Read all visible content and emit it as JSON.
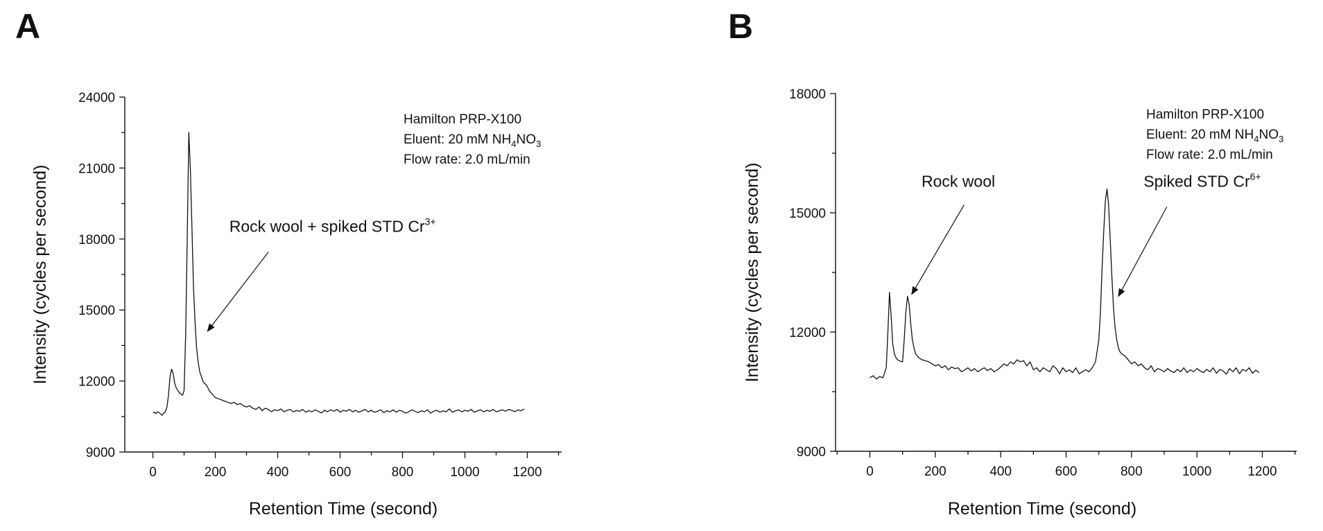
{
  "chart_data": [
    {
      "type": "line",
      "panel_label": "A",
      "xlabel": "Retention Time (second)",
      "ylabel": "Intensity (cycles per second)",
      "xlim": [
        -90,
        1310
      ],
      "ylim": [
        9000,
        24000
      ],
      "x_ticks": [
        0,
        200,
        400,
        600,
        800,
        1000,
        1200
      ],
      "y_ticks": [
        9000,
        12000,
        15000,
        18000,
        21000,
        24000
      ],
      "info_lines": [
        {
          "text": "Hamilton PRP-X100"
        },
        {
          "text": "Eluent: 20 mM NH",
          "sub1": "4",
          "mid": "NO",
          "sub2": "3"
        },
        {
          "text": "Flow rate: 2.0 mL/min"
        }
      ],
      "annotations": [
        {
          "text": "Rock wool + spiked STD Cr",
          "sup": "3+",
          "text_x": 245,
          "text_y": 18300,
          "arrow_from": [
            370,
            17450
          ],
          "arrow_to": [
            175,
            14100
          ]
        }
      ],
      "series": [
        {
          "x": [
            0,
            5,
            10,
            15,
            20,
            25,
            30,
            35,
            40,
            45,
            50,
            55,
            60,
            65,
            70,
            75,
            80,
            85,
            90,
            95,
            100,
            105,
            110,
            115,
            120,
            125,
            130,
            135,
            140,
            145,
            150,
            155,
            160,
            165,
            170,
            175,
            180,
            190,
            200,
            210,
            220,
            230,
            240,
            250,
            260,
            270,
            280,
            290,
            300,
            310,
            320,
            330,
            340,
            350,
            360,
            370,
            380,
            390,
            400,
            410,
            420,
            430,
            440,
            450,
            460,
            470,
            480,
            490,
            500,
            510,
            520,
            530,
            540,
            550,
            560,
            570,
            580,
            590,
            600,
            610,
            620,
            630,
            640,
            650,
            660,
            670,
            680,
            690,
            700,
            710,
            720,
            730,
            740,
            750,
            760,
            770,
            780,
            790,
            800,
            810,
            820,
            830,
            840,
            850,
            860,
            870,
            880,
            890,
            900,
            910,
            920,
            930,
            940,
            950,
            960,
            970,
            980,
            990,
            1000,
            1010,
            1020,
            1030,
            1040,
            1050,
            1060,
            1070,
            1080,
            1090,
            1100,
            1110,
            1120,
            1130,
            1140,
            1150,
            1160,
            1170,
            1180,
            1190
          ],
          "y": [
            10650,
            10680,
            10620,
            10700,
            10660,
            10600,
            10550,
            10650,
            10700,
            10900,
            11400,
            12200,
            12500,
            12300,
            11900,
            11700,
            11600,
            11500,
            11450,
            11400,
            11600,
            14000,
            18000,
            22500,
            21000,
            18500,
            16000,
            14500,
            13400,
            12800,
            12400,
            12200,
            12000,
            11900,
            11850,
            11750,
            11600,
            11450,
            11300,
            11250,
            11200,
            11150,
            11100,
            11050,
            11100,
            11000,
            11050,
            10950,
            10900,
            10950,
            10850,
            10800,
            10900,
            10750,
            10850,
            10800,
            10700,
            10780,
            10750,
            10820,
            10700,
            10760,
            10800,
            10700,
            10750,
            10720,
            10800,
            10680,
            10750,
            10700,
            10780,
            10720,
            10650,
            10760,
            10700,
            10780,
            10720,
            10800,
            10680,
            10760,
            10720,
            10800,
            10700,
            10760,
            10680,
            10740,
            10800,
            10700,
            10760,
            10680,
            10720,
            10780,
            10660,
            10740,
            10700,
            10780,
            10680,
            10760,
            10720,
            10640,
            10700,
            10780,
            10720,
            10660,
            10740,
            10700,
            10780,
            10640,
            10720,
            10760,
            10680,
            10740,
            10700,
            10820,
            10680,
            10740,
            10780,
            10700,
            10760,
            10720,
            10800,
            10680,
            10740,
            10780,
            10700,
            10760,
            10720,
            10800,
            10700,
            10740,
            10780,
            10720,
            10800,
            10760,
            10700,
            10780,
            10740,
            10820
          ]
        }
      ]
    },
    {
      "type": "line",
      "panel_label": "B",
      "xlabel": "Retention Time (second)",
      "ylabel": "Intensity (cycles per second)",
      "xlim": [
        -105,
        1305
      ],
      "ylim": [
        9000,
        18000
      ],
      "x_ticks": [
        0,
        200,
        400,
        600,
        800,
        1000,
        1200
      ],
      "y_ticks": [
        9000,
        12000,
        15000,
        18000
      ],
      "info_lines": [
        {
          "text": "Hamilton PRP-X100"
        },
        {
          "text": "Eluent: 20 mM NH",
          "sub1": "4",
          "mid": "NO",
          "sub2": "3"
        },
        {
          "text": "Flow rate: 2.0 mL/min"
        }
      ],
      "annotations": [
        {
          "text": "Rock wool",
          "sup": "",
          "text_x": 158,
          "text_y": 15650,
          "arrow_from": [
            288,
            15200
          ],
          "arrow_to": [
            128,
            12950
          ]
        },
        {
          "text": "Spiked STD Cr",
          "sup": "6+",
          "text_x": 837,
          "text_y": 15650,
          "arrow_from": [
            908,
            15150
          ],
          "arrow_to": [
            760,
            12900
          ]
        }
      ],
      "series": [
        {
          "x": [
            0,
            10,
            20,
            30,
            40,
            50,
            55,
            60,
            65,
            70,
            75,
            80,
            85,
            90,
            95,
            100,
            105,
            110,
            115,
            120,
            125,
            130,
            135,
            140,
            145,
            150,
            160,
            170,
            180,
            190,
            200,
            210,
            220,
            230,
            240,
            250,
            260,
            270,
            280,
            290,
            300,
            310,
            320,
            330,
            340,
            350,
            360,
            370,
            380,
            390,
            400,
            410,
            420,
            430,
            440,
            450,
            460,
            470,
            480,
            490,
            500,
            510,
            520,
            530,
            540,
            550,
            560,
            570,
            580,
            590,
            600,
            610,
            620,
            630,
            640,
            650,
            660,
            670,
            680,
            690,
            700,
            705,
            710,
            715,
            720,
            725,
            730,
            735,
            740,
            745,
            750,
            755,
            760,
            765,
            770,
            780,
            790,
            800,
            810,
            820,
            830,
            840,
            850,
            860,
            870,
            880,
            890,
            900,
            910,
            920,
            930,
            940,
            950,
            960,
            970,
            980,
            990,
            1000,
            1010,
            1020,
            1030,
            1040,
            1050,
            1060,
            1070,
            1080,
            1090,
            1100,
            1110,
            1120,
            1130,
            1140,
            1150,
            1160,
            1170,
            1180,
            1190
          ],
          "y": [
            10850,
            10900,
            10820,
            10880,
            10850,
            11100,
            12000,
            13000,
            12400,
            11700,
            11450,
            11350,
            11300,
            11280,
            11260,
            11250,
            11800,
            12500,
            12900,
            12700,
            12200,
            11800,
            11600,
            11450,
            11400,
            11350,
            11300,
            11280,
            11250,
            11200,
            11150,
            11180,
            11100,
            11150,
            11050,
            11120,
            11080,
            11100,
            11000,
            11050,
            11100,
            11020,
            11080,
            11000,
            11060,
            11100,
            11030,
            11080,
            11000,
            11050,
            11120,
            11200,
            11150,
            11250,
            11200,
            11300,
            11250,
            11280,
            11150,
            11250,
            11050,
            11100,
            11000,
            11100,
            11050,
            11000,
            11150,
            11080,
            10950,
            11100,
            11000,
            11050,
            10980,
            11100,
            10950,
            11000,
            11050,
            11000,
            11100,
            11250,
            11800,
            12500,
            13600,
            14500,
            15300,
            15600,
            15200,
            14300,
            13400,
            12600,
            12100,
            11800,
            11600,
            11500,
            11450,
            11400,
            11300,
            11200,
            11250,
            11150,
            11200,
            11100,
            11050,
            11150,
            11000,
            11080,
            11050,
            11000,
            11080,
            11020,
            10980,
            11060,
            11000,
            11100,
            10980,
            11050,
            11000,
            11080,
            11020,
            10980,
            11060,
            11000,
            11100,
            10960,
            11060,
            11020,
            10940,
            11080,
            11000,
            11100,
            10950,
            11060,
            11020,
            11100,
            10960,
            11040,
            10980
          ]
        }
      ]
    }
  ]
}
